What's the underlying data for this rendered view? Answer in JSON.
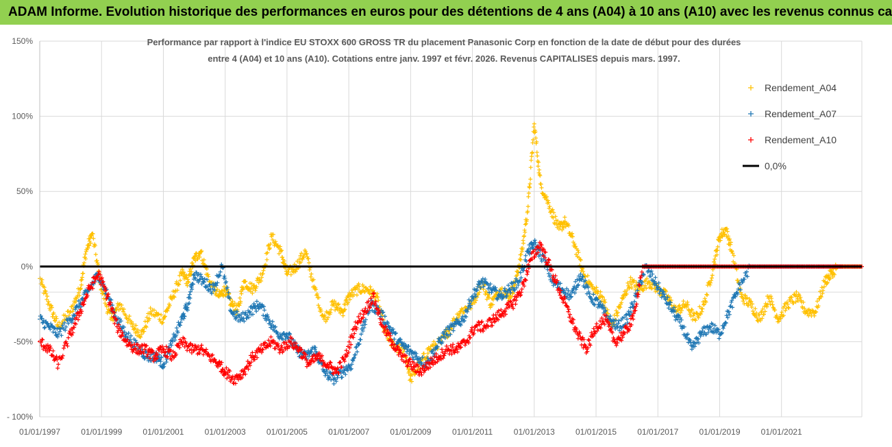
{
  "banner": {
    "title": "ADAM Informe. Evolution historique des performances en euros pour des détentions de 4 ans (A04) à 10 ans (A10) avec les revenus connus capitalisés",
    "bg_color": "#92d050"
  },
  "chart_data": {
    "type": "scatter",
    "title_line1": "Performance par rapport à l'indice EU STOXX 600 GROSS TR  du placement Panasonic Corp en fonction de la date de début pour des durées",
    "title_line2": "entre 4 (A04) et 10 ans (A10). Cotations entre janv. 1997 et févr. 2026. Revenus CAPITALISES depuis mars. 1997.",
    "ylim": [
      -100,
      150
    ],
    "xlim": [
      1997.0,
      2023.6
    ],
    "y_ticks": [
      {
        "value": 150,
        "label": "150%"
      },
      {
        "value": 100,
        "label": "100%"
      },
      {
        "value": 50,
        "label": "50%"
      },
      {
        "value": 0,
        "label": "0%"
      },
      {
        "value": -50,
        "label": "-50%"
      },
      {
        "value": -100,
        "label": "- 100%"
      }
    ],
    "x_ticks": [
      {
        "value": 1997,
        "label": "01/01/1997"
      },
      {
        "value": 1999,
        "label": "01/01/1999"
      },
      {
        "value": 2001,
        "label": "01/01/2001"
      },
      {
        "value": 2003,
        "label": "01/01/2003"
      },
      {
        "value": 2005,
        "label": "01/01/2005"
      },
      {
        "value": 2007,
        "label": "01/01/2007"
      },
      {
        "value": 2009,
        "label": "01/01/2009"
      },
      {
        "value": 2011,
        "label": "01/01/2011"
      },
      {
        "value": 2013,
        "label": "01/01/2013"
      },
      {
        "value": 2015,
        "label": "01/01/2015"
      },
      {
        "value": 2017,
        "label": "01/01/2017"
      },
      {
        "value": 2019,
        "label": "01/01/2019"
      },
      {
        "value": 2021,
        "label": "01/01/2021"
      }
    ],
    "legend_position": "top-right",
    "series": [
      {
        "name": "Rendement_A04",
        "color": "#ffc000",
        "x": [
          1997.0,
          1997.3,
          1997.6,
          1998.0,
          1998.3,
          1998.5,
          1998.7,
          1999.0,
          1999.3,
          1999.6,
          2000.0,
          2000.3,
          2000.6,
          2001.0,
          2001.3,
          2001.6,
          2001.8,
          2002.0,
          2002.2,
          2002.5,
          2002.8,
          2003.0,
          2003.2,
          2003.4,
          2003.6,
          2003.9,
          2004.2,
          2004.5,
          2004.8,
          2005.0,
          2005.3,
          2005.6,
          2005.9,
          2006.2,
          2006.5,
          2006.8,
          2007.0,
          2007.3,
          2007.6,
          2007.9,
          2008.2,
          2008.5,
          2008.8,
          2009.0,
          2009.3,
          2009.6,
          2010.0,
          2010.3,
          2010.6,
          2011.0,
          2011.3,
          2011.6,
          2011.9,
          2012.2,
          2012.4,
          2012.6,
          2012.8,
          2013.0,
          2013.2,
          2013.5,
          2013.8,
          2014.0,
          2014.3,
          2014.6,
          2014.9,
          2015.2,
          2015.5,
          2015.8,
          2016.1,
          2016.4,
          2016.7,
          2017.0,
          2017.3,
          2017.6,
          2017.9,
          2018.2,
          2018.5,
          2018.8,
          2019.0,
          2019.2,
          2019.4,
          2019.7,
          2020.0,
          2020.3,
          2020.6,
          2020.9,
          2021.2,
          2021.5,
          2021.8,
          2022.1,
          2022.4,
          2022.6,
          2022.8,
          2023.0,
          2023.3,
          2023.6
        ],
        "y": [
          -8,
          -25,
          -40,
          -30,
          -15,
          10,
          22,
          -15,
          -35,
          -25,
          -40,
          -45,
          -30,
          -35,
          -20,
          -5,
          -10,
          5,
          10,
          -10,
          -20,
          -15,
          -25,
          -30,
          -10,
          -15,
          -5,
          20,
          10,
          -5,
          0,
          10,
          -15,
          -35,
          -25,
          -30,
          -20,
          -15,
          -15,
          -20,
          -45,
          -55,
          -55,
          -75,
          -65,
          -55,
          -50,
          -40,
          -30,
          -25,
          -10,
          -25,
          -15,
          -20,
          -10,
          10,
          40,
          95,
          55,
          40,
          25,
          30,
          15,
          -5,
          -15,
          -20,
          -40,
          -25,
          -10,
          -15,
          -10,
          -15,
          -20,
          -30,
          -25,
          -35,
          -25,
          0,
          20,
          25,
          10,
          -20,
          -25,
          -35,
          -20,
          -35,
          -25,
          -20,
          -30,
          -30,
          -10,
          -5,
          0,
          0,
          0,
          0
        ]
      },
      {
        "name": "Rendement_A07",
        "color": "#1f77b4",
        "x": [
          1997.0,
          1997.3,
          1997.6,
          1998.0,
          1998.3,
          1998.6,
          1998.9,
          1999.2,
          1999.5,
          1999.8,
          2000.2,
          2000.5,
          2000.8,
          2001.0,
          2001.3,
          2001.6,
          2001.8,
          2002.0,
          2002.3,
          2002.6,
          2002.9,
          2003.2,
          2003.5,
          2003.8,
          2004.1,
          2004.4,
          2004.7,
          2005.0,
          2005.3,
          2005.6,
          2005.9,
          2006.2,
          2006.5,
          2006.8,
          2007.1,
          2007.4,
          2007.7,
          2008.0,
          2008.3,
          2008.6,
          2008.9,
          2009.2,
          2009.5,
          2009.8,
          2010.1,
          2010.4,
          2010.7,
          2011.0,
          2011.3,
          2011.6,
          2011.9,
          2012.2,
          2012.5,
          2012.8,
          2013.0,
          2013.3,
          2013.6,
          2013.9,
          2014.2,
          2014.5,
          2014.8,
          2015.1,
          2015.4,
          2015.7,
          2016.0,
          2016.3,
          2016.6,
          2016.9,
          2017.2,
          2017.5,
          2017.8,
          2018.1,
          2018.4,
          2018.7,
          2019.0,
          2019.3,
          2019.6,
          2020.0,
          2020.5,
          2021.0,
          2021.5,
          2022.0,
          2022.5,
          2023.0,
          2023.6
        ],
        "y": [
          -35,
          -40,
          -45,
          -35,
          -25,
          -15,
          -5,
          -20,
          -35,
          -45,
          -55,
          -60,
          -60,
          -65,
          -50,
          -35,
          -25,
          -5,
          -10,
          -15,
          0,
          -30,
          -35,
          -30,
          -25,
          -35,
          -45,
          -45,
          -55,
          -60,
          -55,
          -70,
          -75,
          -70,
          -65,
          -45,
          -25,
          -30,
          -40,
          -50,
          -55,
          -60,
          -65,
          -55,
          -45,
          -40,
          -35,
          -20,
          -10,
          -15,
          -20,
          -15,
          -10,
          10,
          15,
          5,
          -10,
          -15,
          -20,
          -5,
          -20,
          -25,
          -35,
          -40,
          -35,
          -20,
          0,
          -10,
          -20,
          -30,
          -40,
          -55,
          -45,
          -40,
          -45,
          -30,
          -15,
          0,
          0,
          0,
          0,
          0,
          0,
          0,
          0
        ]
      },
      {
        "name": "Rendement_A10",
        "color": "#ff0000",
        "x": [
          1997.0,
          1997.3,
          1997.6,
          1998.0,
          1998.3,
          1998.6,
          1998.9,
          1999.2,
          1999.5,
          1999.8,
          2000.1,
          2000.4,
          2000.7,
          2001.0,
          2001.3,
          2001.6,
          2001.9,
          2002.2,
          2002.5,
          2002.8,
          2003.0,
          2003.3,
          2003.6,
          2003.9,
          2004.2,
          2004.5,
          2004.8,
          2005.1,
          2005.4,
          2005.7,
          2006.0,
          2006.3,
          2006.6,
          2006.9,
          2007.2,
          2007.5,
          2007.8,
          2008.1,
          2008.4,
          2008.7,
          2009.0,
          2009.3,
          2009.6,
          2009.9,
          2010.2,
          2010.5,
          2010.8,
          2011.1,
          2011.4,
          2011.7,
          2012.0,
          2012.3,
          2012.6,
          2012.9,
          2013.2,
          2013.5,
          2013.8,
          2014.1,
          2014.4,
          2014.7,
          2015.0,
          2015.3,
          2015.6,
          2015.9,
          2016.2,
          2016.5,
          2017.0,
          2017.5,
          2018.0,
          2018.5,
          2019.0,
          2019.5,
          2020.0,
          2020.5,
          2021.0,
          2021.5,
          2022.0,
          2022.5,
          2023.0,
          2023.6
        ],
        "y": [
          -50,
          -55,
          -65,
          -45,
          -30,
          -15,
          -5,
          -20,
          -40,
          -50,
          -55,
          -55,
          -60,
          -55,
          -60,
          -50,
          -55,
          -55,
          -60,
          -65,
          -70,
          -75,
          -70,
          -60,
          -55,
          -50,
          -55,
          -50,
          -55,
          -65,
          -60,
          -65,
          -70,
          -60,
          -40,
          -30,
          -20,
          -40,
          -50,
          -60,
          -65,
          -70,
          -65,
          -60,
          -55,
          -55,
          -50,
          -40,
          -40,
          -35,
          -30,
          -25,
          -15,
          5,
          15,
          0,
          -15,
          -30,
          -45,
          -55,
          -40,
          -35,
          -50,
          -45,
          -35,
          0,
          0,
          0,
          0,
          0,
          0,
          0,
          0,
          0,
          0,
          0,
          0,
          0,
          0,
          0
        ]
      },
      {
        "name": "0,0%",
        "color": "#000000",
        "line": true
      }
    ]
  }
}
